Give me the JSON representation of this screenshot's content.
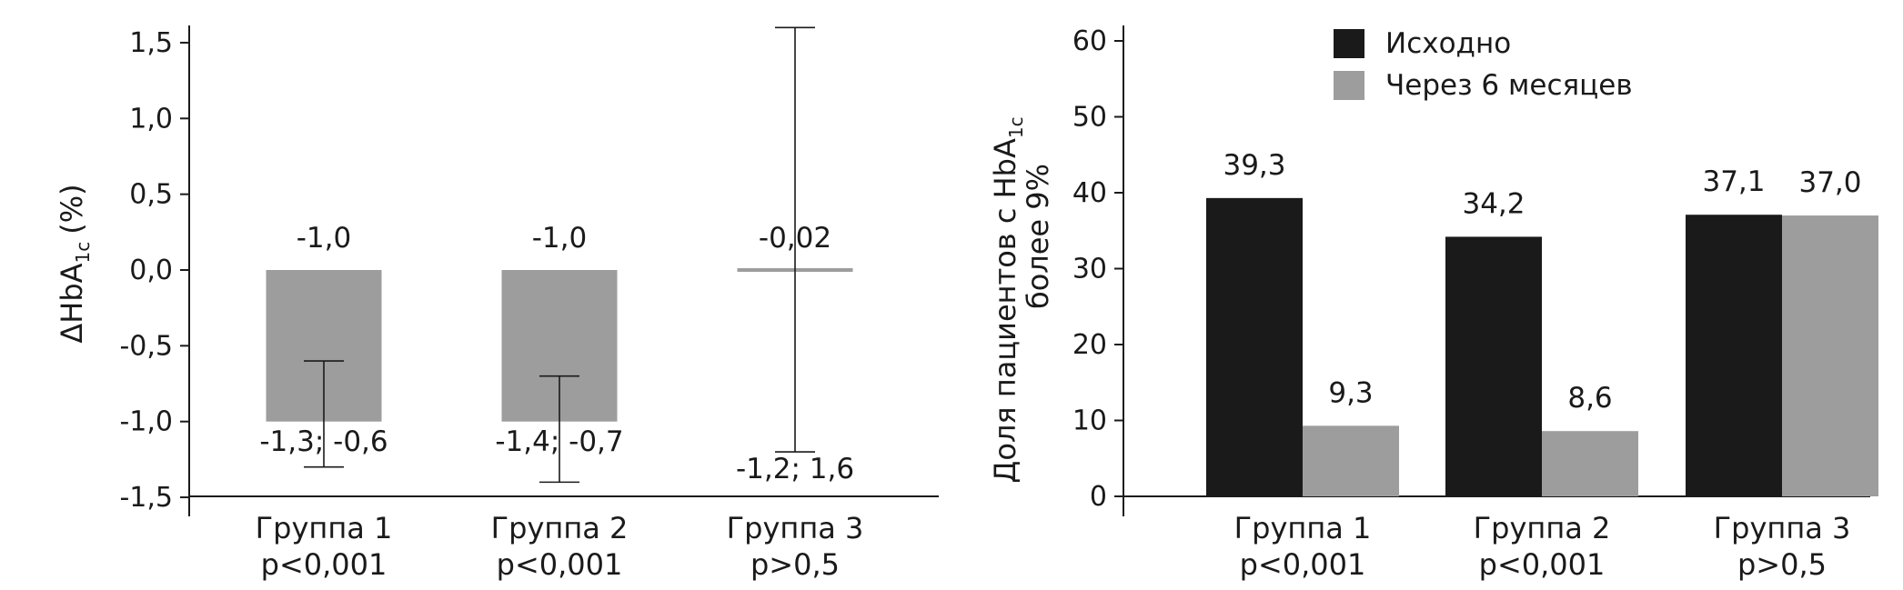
{
  "chart_data": [
    {
      "type": "bar",
      "ylabel_main": "ΔHbA",
      "ylabel_sub": "1c",
      "ylabel_suffix": "(%)",
      "ylim": [
        -1.5,
        1.6
      ],
      "yticks": [
        "1,5",
        "1,0",
        "0,5",
        "0,0",
        "-0,5",
        "-1,0",
        "-1,5"
      ],
      "ytick_values": [
        1.5,
        1.0,
        0.5,
        0.0,
        -0.5,
        -1.0,
        -1.5
      ],
      "categories": [
        "Группа 1",
        "Группа 2",
        "Группа 3"
      ],
      "pvalues": [
        "p<0,001",
        "p<0,001",
        "p>0,5"
      ],
      "values": [
        -1.0,
        -1.0,
        -0.02
      ],
      "value_labels": [
        "-1,0",
        "-1,0",
        "-0,02"
      ],
      "ci_low": [
        -1.3,
        -1.4,
        -1.2
      ],
      "ci_high": [
        -0.6,
        -0.7,
        1.6
      ],
      "ci_labels": [
        "-1,3; -0,6",
        "-1,4; -0,7",
        "-1,2; 1,6"
      ],
      "bar_color": "#9d9d9d"
    },
    {
      "type": "bar",
      "ylabel_line1": "Доля пациентов с HbA",
      "ylabel_sub": "1c",
      "ylabel_line2": "более 9%",
      "ylim": [
        0,
        60
      ],
      "yticks": [
        "60",
        "50",
        "40",
        "30",
        "20",
        "10",
        "0"
      ],
      "ytick_values": [
        60,
        50,
        40,
        30,
        20,
        10,
        0
      ],
      "categories": [
        "Группа 1",
        "Группа 2",
        "Группа 3"
      ],
      "pvalues": [
        "p<0,001",
        "p<0,001",
        "p>0,5"
      ],
      "legend_position": "top-center",
      "series": [
        {
          "name": "Исходно",
          "color": "#1a1a1a",
          "values": [
            39.3,
            34.2,
            37.1
          ],
          "labels": [
            "39,3",
            "34,2",
            "37,1"
          ]
        },
        {
          "name": "Через 6 месяцев",
          "color": "#9d9d9d",
          "values": [
            9.3,
            8.6,
            37.0
          ],
          "labels": [
            "9,3",
            "8,6",
            "37,0"
          ]
        }
      ]
    }
  ]
}
